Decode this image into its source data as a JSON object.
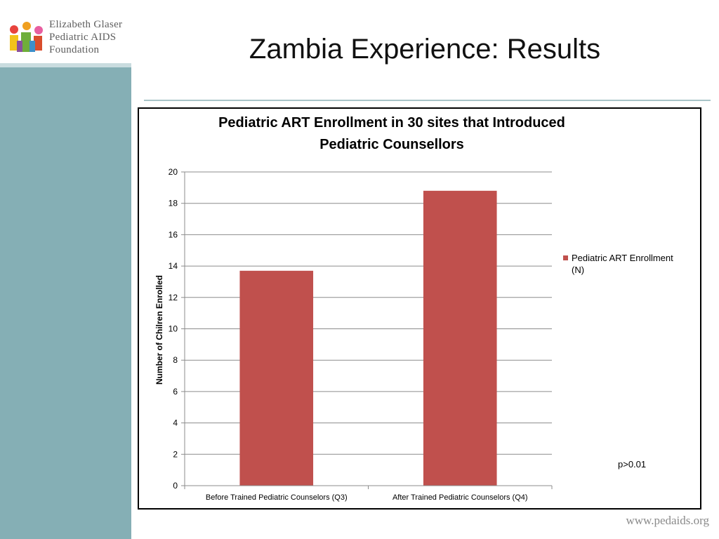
{
  "logo": {
    "line1": "Elizabeth Glaser",
    "line2": "Pediatric AIDS",
    "line3": "Foundation"
  },
  "slide": {
    "title": "Zambia Experience: Results"
  },
  "footer": {
    "url": "www.pedaids.org"
  },
  "chart_data": {
    "type": "bar",
    "title": "Pediatric ART Enrollment in 30 sites that Introduced Pediatric Counsellors",
    "title_lines": [
      "Pediatric ART Enrollment in 30 sites that Introduced",
      "Pediatric Counsellors"
    ],
    "categories": [
      "Before Trained Pediatric Counselors (Q3)",
      "After Trained Pediatric Counselors (Q4)"
    ],
    "series": [
      {
        "name": "Pediatric ART Enrollment (N)",
        "name_lines": [
          "Pediatric ART Enrollment",
          "(N)"
        ],
        "values": [
          13.7,
          18.8
        ],
        "color": "#c0504d"
      }
    ],
    "xlabel": "",
    "ylabel": "Number of Chilren Enrolled",
    "ylim": [
      0,
      20
    ],
    "yticks": [
      0,
      2,
      4,
      6,
      8,
      10,
      12,
      14,
      16,
      18,
      20
    ],
    "grid": true,
    "legend_position": "right",
    "annotation": "p>0.01"
  }
}
